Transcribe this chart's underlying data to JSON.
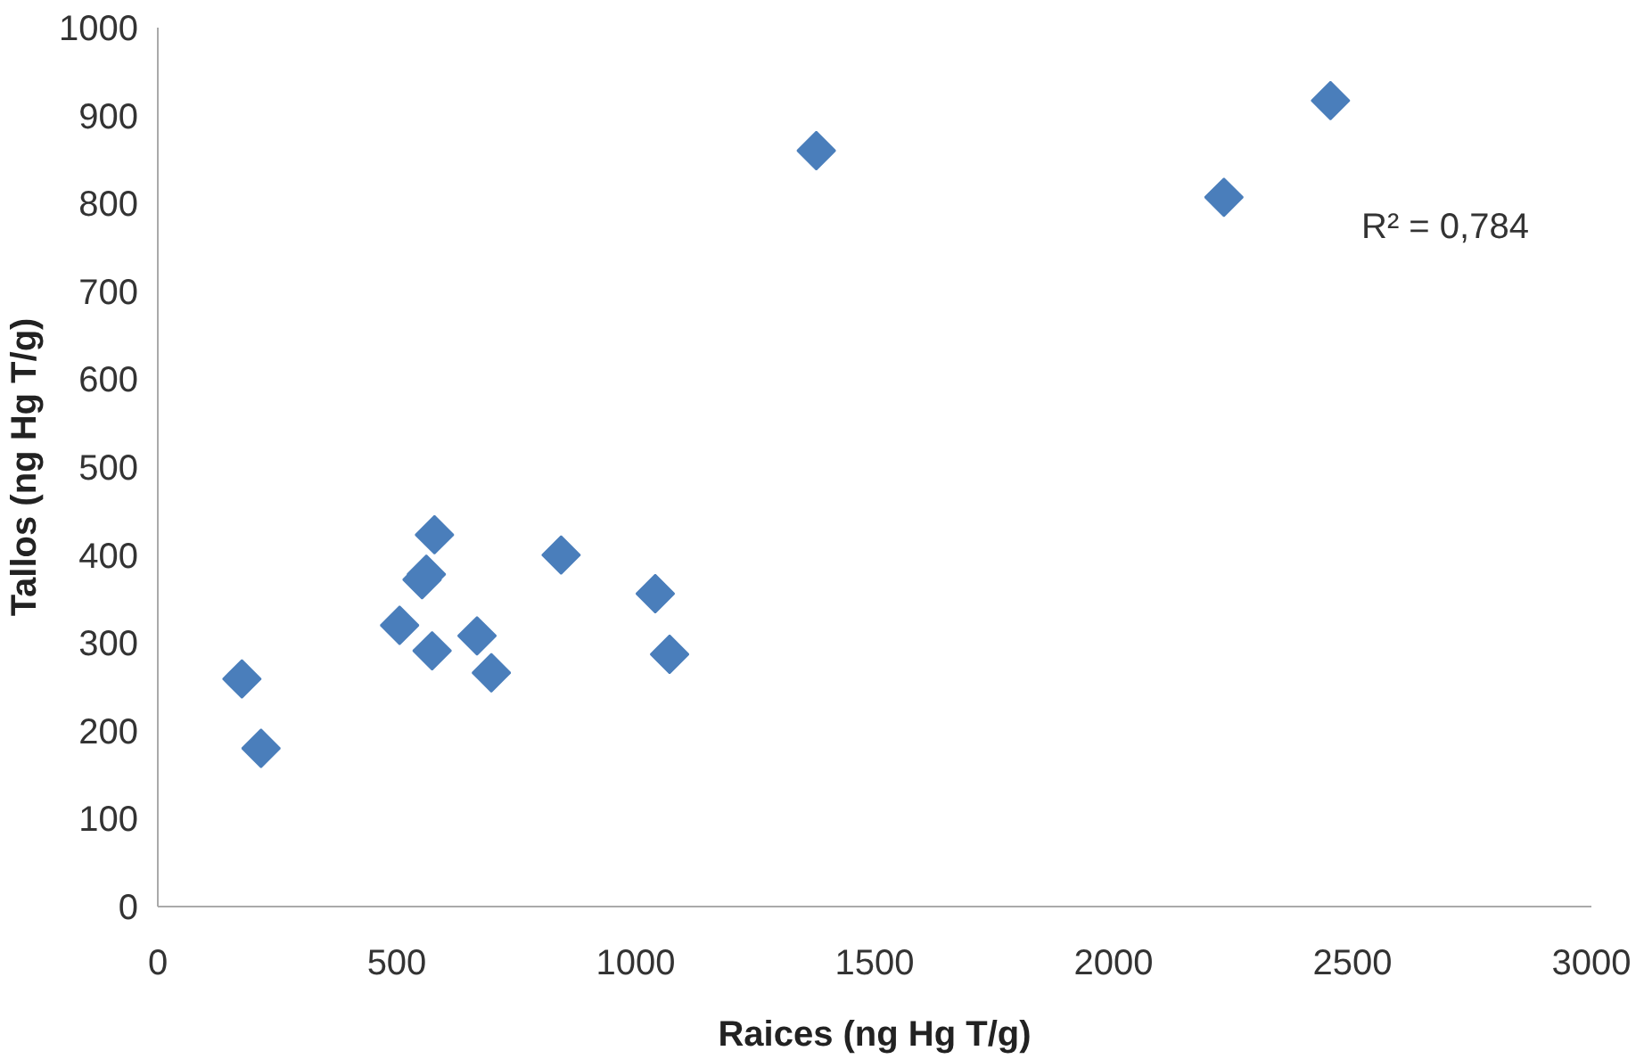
{
  "chart_data": {
    "type": "scatter",
    "xlabel": "Raices (ng Hg T/g)",
    "ylabel": "Tallos (ng Hg T/g)",
    "x": [
      176,
      216,
      506,
      553,
      562,
      579,
      574,
      668,
      698,
      844,
      1041,
      1071,
      1378,
      2231,
      2454
    ],
    "series": [
      {
        "color": "#4a7ebb",
        "values": [
          259,
          180,
          320,
          372,
          378,
          423,
          291,
          308,
          266,
          400,
          356,
          287,
          860,
          807,
          917
        ]
      }
    ],
    "xlim": [
      0,
      3000
    ],
    "ylim": [
      0,
      1000
    ],
    "xticks": [
      0,
      500,
      1000,
      1500,
      2000,
      2500,
      3000
    ],
    "yticks": [
      0,
      100,
      200,
      300,
      400,
      500,
      600,
      700,
      800,
      900,
      1000
    ],
    "marker": "diamond",
    "annotations": [
      "R² = 0,784"
    ]
  }
}
